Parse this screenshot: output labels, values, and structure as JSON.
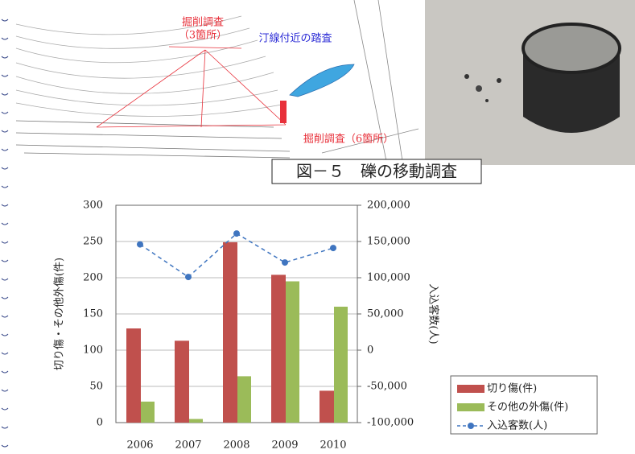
{
  "figure": {
    "map_labels": [
      {
        "lines": [
          "掘削調査",
          "（3箇所）"
        ],
        "color": "#e8303a"
      },
      {
        "lines": [
          "汀線付近の踏査"
        ],
        "color": "#2b2bd6"
      },
      {
        "lines": [
          "掘削調査（6箇所）"
        ],
        "color": "#e8303a"
      }
    ],
    "caption": "図－５　礫の移動調査"
  },
  "chart_data": {
    "type": "bar",
    "categories": [
      "2006",
      "2007",
      "2008",
      "2009",
      "2010"
    ],
    "series": [
      {
        "name": "切り傷(件)",
        "color": "#c0504d",
        "values": [
          130,
          113,
          249,
          204,
          44
        ]
      },
      {
        "name": "その他の外傷(件)",
        "color": "#9bbb59",
        "values": [
          29,
          5,
          64,
          195,
          160
        ]
      },
      {
        "name": "入込客数(人)",
        "color": "#3f75c0",
        "type": "line",
        "axis": "y2",
        "values": [
          146000,
          101000,
          161000,
          121000,
          141000
        ]
      }
    ],
    "ylabel": "切り傷・その他外傷(件)",
    "y2label": "入込客数(人)",
    "ylim": [
      0,
      300
    ],
    "yticks": [
      0,
      50,
      100,
      150,
      200,
      250,
      300
    ],
    "y2lim": [
      -100000,
      200000
    ],
    "y2ticks": [
      {
        "value": -100000,
        "label": "-100,000"
      },
      {
        "value": -50000,
        "label": "-50,000"
      },
      0,
      {
        "value": 50000,
        "label": "50,000"
      },
      {
        "value": 100000,
        "label": "100,000"
      },
      {
        "value": 150000,
        "label": "150,000"
      },
      {
        "value": 200000,
        "label": "200,000"
      }
    ],
    "grid": true,
    "legend": "bottom-right"
  }
}
